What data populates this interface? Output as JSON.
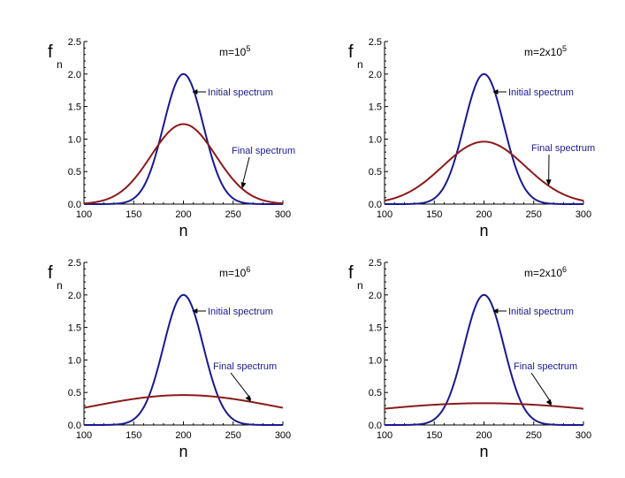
{
  "chart_data": [
    {
      "type": "line",
      "panel_label": "m=10^5",
      "m_text": "m=10",
      "m_exp": "5",
      "xlabel": "n",
      "ylabel_main": "f",
      "ylabel_sub": "n",
      "xlim": [
        100,
        300
      ],
      "ylim": [
        0,
        2.5
      ],
      "xticks": [
        "100",
        "150",
        "200",
        "250",
        "300"
      ],
      "yticks": [
        "0.0",
        "0.5",
        "1.0",
        "1.5",
        "2.0",
        "2.5"
      ],
      "series": [
        {
          "name": "Initial spectrum",
          "color": "#1a1a8c",
          "center": 200,
          "peak": 2.0,
          "sigma": 20
        },
        {
          "name": "Final spectrum",
          "color": "#8b1a1a",
          "center": 200,
          "peak": 1.23,
          "sigma": 32.5
        }
      ],
      "annotations": [
        {
          "text": "Initial spectrum",
          "color": "#1a1a8c",
          "target_series": 0,
          "target_n": 207
        },
        {
          "text": "Final spectrum",
          "color": "#1a1a8c",
          "target_series": 1,
          "target_n": 259
        }
      ]
    },
    {
      "type": "line",
      "panel_label": "m=2x10^5",
      "m_text": "m=2x10",
      "m_exp": "5",
      "xlabel": "n",
      "ylabel_main": "f",
      "ylabel_sub": "n",
      "xlim": [
        100,
        300
      ],
      "ylim": [
        0,
        2.5
      ],
      "xticks": [
        "100",
        "150",
        "200",
        "250",
        "300"
      ],
      "yticks": [
        "0.0",
        "0.5",
        "1.0",
        "1.5",
        "2.0",
        "2.5"
      ],
      "series": [
        {
          "name": "Initial spectrum",
          "color": "#1a1a8c",
          "center": 200,
          "peak": 2.0,
          "sigma": 20
        },
        {
          "name": "Final spectrum",
          "color": "#8b1a1a",
          "center": 200,
          "peak": 0.96,
          "sigma": 41.5
        }
      ],
      "annotations": [
        {
          "text": "Initial spectrum",
          "color": "#1a1a8c",
          "target_series": 0,
          "target_n": 207
        },
        {
          "text": "Final spectrum",
          "color": "#1a1a8c",
          "target_series": 1,
          "target_n": 265
        }
      ]
    },
    {
      "type": "line",
      "panel_label": "m=10^6",
      "m_text": "m=10",
      "m_exp": "6",
      "xlabel": "n",
      "ylabel_main": "f",
      "ylabel_sub": "n",
      "xlim": [
        100,
        300
      ],
      "ylim": [
        0,
        2.5
      ],
      "xticks": [
        "100",
        "150",
        "200",
        "250",
        "300"
      ],
      "yticks": [
        "0.0",
        "0.5",
        "1.0",
        "1.5",
        "2.0",
        "2.5"
      ],
      "series": [
        {
          "name": "Initial spectrum",
          "color": "#1a1a8c",
          "center": 200,
          "peak": 2.0,
          "sigma": 20
        },
        {
          "name": "Final spectrum",
          "color": "#8b1a1a",
          "center": 200,
          "peak": 0.46,
          "sigma": 95
        }
      ],
      "annotations": [
        {
          "text": "Initial spectrum",
          "color": "#1a1a8c",
          "target_series": 0,
          "target_n": 207
        },
        {
          "text": "Final spectrum",
          "color": "#1a1a8c",
          "target_series": 1,
          "target_n": 268
        }
      ]
    },
    {
      "type": "line",
      "panel_label": "m=2x10^6",
      "m_text": "m=2x10",
      "m_exp": "6",
      "xlabel": "n",
      "ylabel_main": "f",
      "ylabel_sub": "n",
      "xlim": [
        100,
        300
      ],
      "ylim": [
        0,
        2.5
      ],
      "xticks": [
        "100",
        "150",
        "200",
        "250",
        "300"
      ],
      "yticks": [
        "0.0",
        "0.5",
        "1.0",
        "1.5",
        "2.0",
        "2.5"
      ],
      "series": [
        {
          "name": "Initial spectrum",
          "color": "#1a1a8c",
          "center": 200,
          "peak": 2.0,
          "sigma": 20
        },
        {
          "name": "Final spectrum",
          "color": "#8b1a1a",
          "center": 200,
          "peak": 0.335,
          "sigma": 131
        }
      ],
      "annotations": [
        {
          "text": "Initial spectrum",
          "color": "#1a1a8c",
          "target_series": 0,
          "target_n": 207
        },
        {
          "text": "Final spectrum",
          "color": "#1a1a8c",
          "target_series": 1,
          "target_n": 268
        }
      ]
    }
  ]
}
